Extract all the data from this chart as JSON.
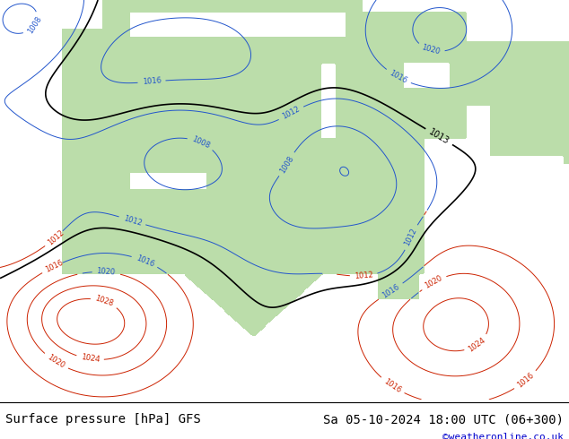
{
  "title_left": "Surface pressure [hPa] GFS",
  "title_right": "Sa 05-10-2024 18:00 UTC (06+300)",
  "credit": "©weatheronline.co.uk",
  "credit_color": "#0000cc",
  "land_color": "#bbddaa",
  "ocean_color_n": "#d8d8d8",
  "ocean_color_s": "#d8d8d8",
  "text_color": "#000000",
  "title_fontsize": 10,
  "credit_fontsize": 8,
  "figsize": [
    6.34,
    4.9
  ],
  "dpi": 100
}
